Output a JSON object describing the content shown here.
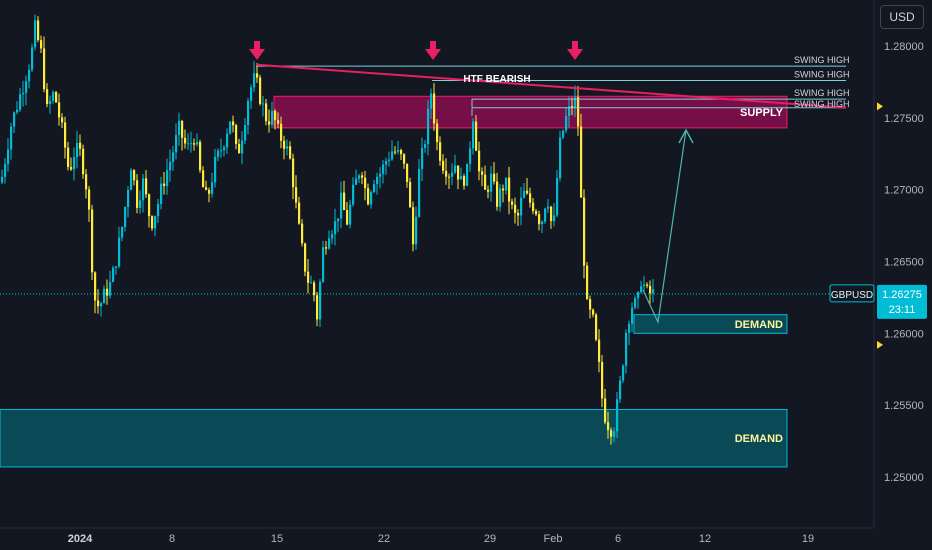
{
  "toolbar": {
    "currency": "USD"
  },
  "price_axis": {
    "ticks": [
      {
        "label": "1.28000",
        "value": 1.28
      },
      {
        "label": "1.27500",
        "value": 1.275
      },
      {
        "label": "1.27000",
        "value": 1.27
      },
      {
        "label": "1.26500",
        "value": 1.265
      },
      {
        "label": "1.26000",
        "value": 1.26
      },
      {
        "label": "1.25500",
        "value": 1.255
      },
      {
        "label": "1.25000",
        "value": 1.25
      }
    ]
  },
  "time_axis": {
    "ticks": [
      {
        "label": "2024",
        "bold": true
      },
      {
        "label": "8"
      },
      {
        "label": "15"
      },
      {
        "label": "22"
      },
      {
        "label": "29"
      },
      {
        "label": "Feb"
      },
      {
        "label": "6"
      },
      {
        "label": "12"
      },
      {
        "label": "19"
      }
    ]
  },
  "symbol_tag": {
    "symbol": "GBPUSD",
    "price": "1.26275",
    "countdown": "23:11",
    "value": 1.26275
  },
  "colors": {
    "background": "#131722",
    "bull": "#00bcd4",
    "bear": "#ffeb3b",
    "supply_fill": "#880e4f",
    "supply_border": "#e91e63",
    "demand_fill": "#0a4f5c",
    "demand_border": "#00bcd4",
    "trendline": "#e91e63",
    "arrow_marker": "#e91e63",
    "projection": "#4db6ac",
    "swing_line": "#7ecfd9",
    "axis_text": "#b2b5be"
  },
  "annotations": {
    "htf_label": "HTF BEARISH",
    "supply_label": "SUPPLY",
    "demand_upper_label": "DEMAND",
    "demand_lower_label": "DEMAND",
    "swing_labels": [
      "SWING HIGH",
      "SWING HIGH",
      "SWING HIGH",
      "SWING HIGH"
    ],
    "swing_levels": [
      1.2786,
      1.2776,
      1.2763,
      1.2757
    ]
  },
  "zones": {
    "supply": {
      "top": 1.2765,
      "bottom": 1.2743,
      "label": "SUPPLY"
    },
    "demand_upper": {
      "top": 1.2613,
      "bottom": 1.26,
      "label": "DEMAND"
    },
    "demand_lower": {
      "top": 1.2547,
      "bottom": 1.2507,
      "label": "DEMAND"
    }
  },
  "chart_data": {
    "type": "candlestick",
    "symbol": "GBPUSD",
    "title": "",
    "xlabel": "",
    "ylabel": "",
    "ylim": [
      1.2471,
      1.2828
    ],
    "x_tick_labels": [
      "2024",
      "8",
      "15",
      "22",
      "29",
      "Feb",
      "6",
      "12",
      "19"
    ],
    "y_tick_labels": [
      "1.28000",
      "1.27500",
      "1.27000",
      "1.26500",
      "1.26000",
      "1.25500",
      "1.25000"
    ],
    "last_price": 1.26275,
    "series": [
      {
        "close_path": [
          [
            0,
            1.2705
          ],
          [
            10,
            1.2745
          ],
          [
            20,
            1.2768
          ],
          [
            30,
            1.2792
          ],
          [
            34,
            1.2812
          ],
          [
            40,
            1.2795
          ],
          [
            46,
            1.2755
          ],
          [
            53,
            1.2768
          ],
          [
            62,
            1.2738
          ],
          [
            68,
            1.2712
          ],
          [
            74,
            1.2728
          ],
          [
            80,
            1.2725
          ],
          [
            87,
            1.2695
          ],
          [
            93,
            1.2625
          ],
          [
            98,
            1.2618
          ],
          [
            104,
            1.2628
          ],
          [
            110,
            1.2635
          ],
          [
            116,
            1.2655
          ],
          [
            122,
            1.2678
          ],
          [
            130,
            1.2718
          ],
          [
            136,
            1.2692
          ],
          [
            142,
            1.2705
          ],
          [
            150,
            1.2676
          ],
          [
            156,
            1.2688
          ],
          [
            162,
            1.2705
          ],
          [
            170,
            1.2722
          ],
          [
            178,
            1.2742
          ],
          [
            186,
            1.2728
          ],
          [
            194,
            1.2738
          ],
          [
            200,
            1.2706
          ],
          [
            206,
            1.2692
          ],
          [
            214,
            1.2718
          ],
          [
            222,
            1.2732
          ],
          [
            230,
            1.2752
          ],
          [
            236,
            1.2722
          ],
          [
            242,
            1.2742
          ],
          [
            248,
            1.2768
          ],
          [
            254,
            1.2778
          ],
          [
            260,
            1.2762
          ],
          [
            266,
            1.2748
          ],
          [
            272,
            1.2752
          ],
          [
            278,
            1.2738
          ],
          [
            284,
            1.2732
          ],
          [
            290,
            1.2718
          ],
          [
            296,
            1.2682
          ],
          [
            300,
            1.2662
          ],
          [
            306,
            1.2638
          ],
          [
            312,
            1.2632
          ],
          [
            316,
            1.2612
          ],
          [
            322,
            1.2658
          ],
          [
            328,
            1.2672
          ],
          [
            334,
            1.2676
          ],
          [
            340,
            1.2692
          ],
          [
            346,
            1.2678
          ],
          [
            352,
            1.2698
          ],
          [
            360,
            1.2718
          ],
          [
            366,
            1.2692
          ],
          [
            372,
            1.2708
          ],
          [
            380,
            1.2712
          ],
          [
            386,
            1.2722
          ],
          [
            392,
            1.2728
          ],
          [
            400,
            1.2722
          ],
          [
            406,
            1.2708
          ],
          [
            412,
            1.2662
          ],
          [
            418,
            1.2712
          ],
          [
            424,
            1.2735
          ],
          [
            430,
            1.2768
          ],
          [
            436,
            1.2732
          ],
          [
            442,
            1.2718
          ],
          [
            448,
            1.2712
          ],
          [
            454,
            1.2718
          ],
          [
            460,
            1.2705
          ],
          [
            466,
            1.2712
          ],
          [
            472,
            1.2752
          ],
          [
            478,
            1.2712
          ],
          [
            484,
            1.2698
          ],
          [
            490,
            1.2708
          ],
          [
            496,
            1.2692
          ],
          [
            504,
            1.2706
          ],
          [
            510,
            1.2688
          ],
          [
            516,
            1.2678
          ],
          [
            522,
            1.2698
          ],
          [
            528,
            1.2692
          ],
          [
            534,
            1.2688
          ],
          [
            540,
            1.2676
          ],
          [
            546,
            1.2698
          ],
          [
            552,
            1.2668
          ],
          [
            558,
            1.2728
          ],
          [
            564,
            1.2748
          ],
          [
            570,
            1.2758
          ],
          [
            576,
            1.2763
          ],
          [
            580,
            1.2692
          ],
          [
            583,
            1.2652
          ],
          [
            586,
            1.2618
          ],
          [
            592,
            1.2608
          ],
          [
            598,
            1.2576
          ],
          [
            602,
            1.2548
          ],
          [
            606,
            1.2538
          ],
          [
            612,
            1.2532
          ],
          [
            618,
            1.2558
          ],
          [
            622,
            1.2582
          ],
          [
            626,
            1.2608
          ],
          [
            632,
            1.2622
          ],
          [
            636,
            1.2618
          ],
          [
            640,
            1.2638
          ],
          [
            646,
            1.2628
          ],
          [
            652,
            1.26275
          ]
        ]
      }
    ],
    "annotations": [
      {
        "type": "zone",
        "label": "SUPPLY",
        "top": 1.2765,
        "bottom": 1.2743
      },
      {
        "type": "zone",
        "label": "DEMAND",
        "top": 1.2613,
        "bottom": 1.26
      },
      {
        "type": "zone",
        "label": "DEMAND",
        "top": 1.2547,
        "bottom": 1.2507
      },
      {
        "type": "trendline",
        "label": "HTF BEARISH",
        "from": [
          256,
          1.2787
        ],
        "to": [
          846,
          1.2757
        ]
      },
      {
        "type": "level",
        "label": "SWING HIGH",
        "value": 1.2786
      },
      {
        "type": "level",
        "label": "SWING HIGH",
        "value": 1.2776
      },
      {
        "type": "level",
        "label": "SWING HIGH",
        "value": 1.2763
      },
      {
        "type": "level",
        "label": "SWING HIGH",
        "value": 1.2757
      }
    ]
  }
}
